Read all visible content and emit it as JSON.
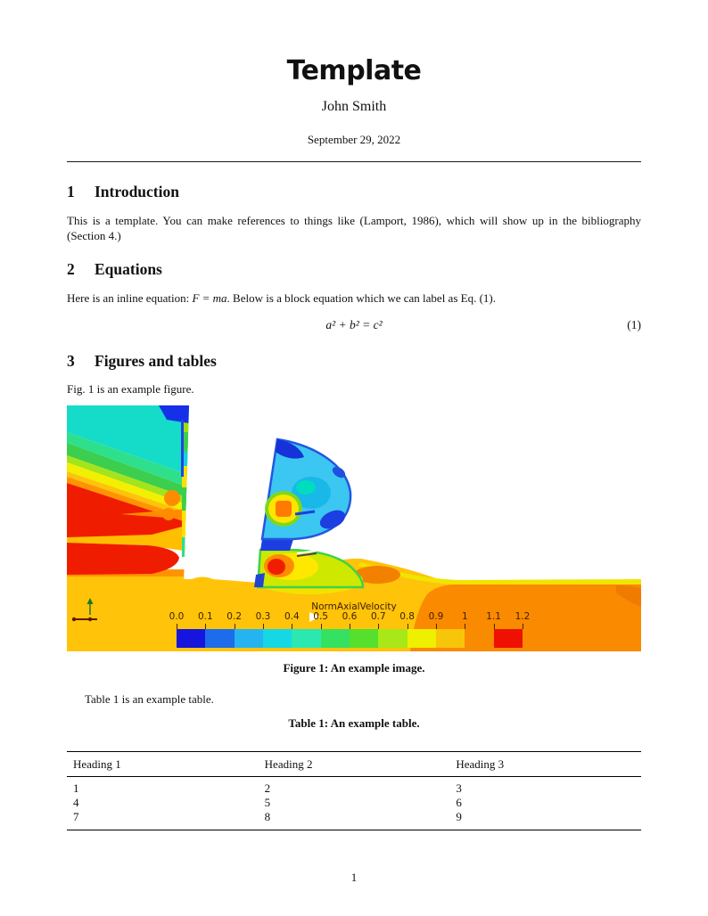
{
  "titleblock": {
    "title": "Template",
    "author": "John Smith",
    "date": "September 29, 2022"
  },
  "section1": {
    "number": "1",
    "title": "Introduction",
    "body": "This is a template. You can make references to things like (Lamport, 1986), which will show up in the bibliography (Section 4.)"
  },
  "section2": {
    "number": "2",
    "title": "Equations",
    "body_before": "Here is an inline equation: ",
    "inline_equation": "F = ma",
    "body_after": ". Below is a block equation which we can label as Eq. (1).",
    "display_equation": "a² + b² = c²",
    "equation_label": "(1)"
  },
  "section3": {
    "number": "3",
    "title": "Figures and tables",
    "figure_text": "Fig. 1 is an example figure.",
    "table_text": "Table 1 is an example table."
  },
  "figure1": {
    "caption_label": "Figure 1:",
    "caption_text": "An example image.",
    "colorbar": {
      "title": "NormAxialVelocity",
      "ticks": [
        "0.0",
        "0.1",
        "0.2",
        "0.3",
        "0.4",
        "0.5",
        "0.6",
        "0.7",
        "0.8",
        "0.9",
        "1",
        "1.1",
        "1.2"
      ],
      "segment_colors": [
        "#1515dd",
        "#1c6ceb",
        "#25b4ef",
        "#15d8e4",
        "#2ce8b0",
        "#35e160",
        "#55e02e",
        "#a8e818",
        "#eef000",
        "#f7c50a",
        "#f98b00",
        "#ee1000"
      ]
    },
    "colors": {
      "floor_gold": "#ffc30a",
      "floor_orange": "#fa8a00",
      "floor_yellow_stripe": "#f0e400",
      "contour_red": "#f01c00",
      "blade_cyan": "#3cc6f2",
      "blade_blue": "#2257e0",
      "label_text": "#402000"
    }
  },
  "table1": {
    "caption_label": "Table 1:",
    "caption_text": "An example table.",
    "headers": [
      "Heading 1",
      "Heading 2",
      "Heading 3"
    ],
    "rows": [
      [
        "1",
        "2",
        "3"
      ],
      [
        "4",
        "5",
        "6"
      ],
      [
        "7",
        "8",
        "9"
      ]
    ]
  },
  "footer": {
    "page_number": "1"
  }
}
